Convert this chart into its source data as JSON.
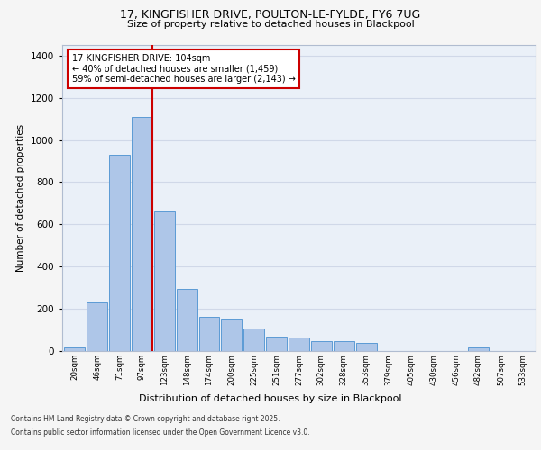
{
  "title_line1": "17, KINGFISHER DRIVE, POULTON-LE-FYLDE, FY6 7UG",
  "title_line2": "Size of property relative to detached houses in Blackpool",
  "xlabel": "Distribution of detached houses by size in Blackpool",
  "ylabel": "Number of detached properties",
  "categories": [
    "20sqm",
    "46sqm",
    "71sqm",
    "97sqm",
    "123sqm",
    "148sqm",
    "174sqm",
    "200sqm",
    "225sqm",
    "251sqm",
    "277sqm",
    "302sqm",
    "328sqm",
    "353sqm",
    "379sqm",
    "405sqm",
    "430sqm",
    "456sqm",
    "482sqm",
    "507sqm",
    "533sqm"
  ],
  "values": [
    18,
    230,
    930,
    1110,
    660,
    295,
    160,
    155,
    105,
    70,
    65,
    45,
    45,
    40,
    0,
    0,
    0,
    0,
    18,
    0,
    0
  ],
  "bar_color": "#aec6e8",
  "bar_edge_color": "#5b9bd5",
  "grid_color": "#d0d8e8",
  "background_color": "#eaf0f8",
  "fig_background_color": "#f5f5f5",
  "vline_color": "#cc0000",
  "annotation_text": "17 KINGFISHER DRIVE: 104sqm\n← 40% of detached houses are smaller (1,459)\n59% of semi-detached houses are larger (2,143) →",
  "annotation_box_color": "#ffffff",
  "annotation_box_edge": "#cc0000",
  "ylim": [
    0,
    1450
  ],
  "yticks": [
    0,
    200,
    400,
    600,
    800,
    1000,
    1200,
    1400
  ],
  "footer_line1": "Contains HM Land Registry data © Crown copyright and database right 2025.",
  "footer_line2": "Contains public sector information licensed under the Open Government Licence v3.0."
}
